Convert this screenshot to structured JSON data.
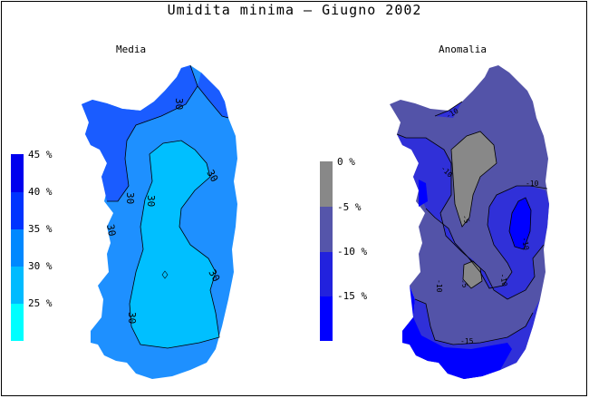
{
  "title": "Umidita minima — Giugno 2002",
  "panels": [
    {
      "subtitle": "Media",
      "legend": {
        "levels": [
          "45 %",
          "40 %",
          "35 %",
          "30 %",
          "25 %"
        ],
        "colors": [
          "#0000ee",
          "#0033ff",
          "#0088ff",
          "#00bbff",
          "#00ffff"
        ]
      },
      "contours": [
        "30",
        "30",
        "30",
        "30",
        "30",
        "30",
        "30"
      ]
    },
    {
      "subtitle": "Anomalia",
      "legend": {
        "levels": [
          "0 %",
          "-5 %",
          "-10 %",
          "-15 %"
        ],
        "colors": [
          "#888888",
          "#5555aa",
          "#2222dd",
          "#0000ff"
        ]
      },
      "contours": [
        "-10",
        "-10",
        "-5",
        "-5",
        "-10",
        "-10",
        "-10",
        "-15",
        "-10"
      ]
    }
  ],
  "colors": {
    "media_fill": "#1e90ff",
    "media_dark": "#1a5cff",
    "media_core": "#00bfff",
    "anom_fill": "#5353a8",
    "anom_mid": "#3030d8",
    "anom_dark": "#0000ff",
    "anom_gray": "#888888"
  }
}
